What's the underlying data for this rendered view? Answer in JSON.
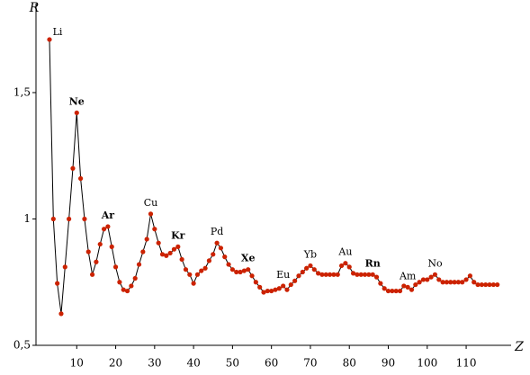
{
  "chart_data": {
    "type": "line",
    "xlabel": "Z",
    "ylabel": "R",
    "x": [
      3,
      4,
      5,
      6,
      7,
      8,
      9,
      10,
      11,
      12,
      13,
      14,
      15,
      16,
      17,
      18,
      19,
      20,
      21,
      22,
      23,
      24,
      25,
      26,
      27,
      28,
      29,
      30,
      31,
      32,
      33,
      34,
      35,
      36,
      37,
      38,
      39,
      40,
      41,
      42,
      43,
      44,
      45,
      46,
      47,
      48,
      49,
      50,
      51,
      52,
      53,
      54,
      55,
      56,
      57,
      58,
      59,
      60,
      61,
      62,
      63,
      64,
      65,
      66,
      67,
      68,
      69,
      70,
      71,
      72,
      73,
      74,
      75,
      76,
      77,
      78,
      79,
      80,
      81,
      82,
      83,
      84,
      85,
      86,
      87,
      88,
      89,
      90,
      91,
      92,
      93,
      94,
      95,
      96,
      97,
      98,
      99,
      100,
      101,
      102,
      103,
      104,
      105,
      106,
      107,
      108,
      109,
      110,
      111,
      112,
      113,
      114,
      115,
      116,
      117,
      118
    ],
    "values": [
      1.71,
      1.0,
      0.745,
      0.625,
      0.81,
      1.0,
      1.2,
      1.42,
      1.16,
      1.0,
      0.87,
      0.78,
      0.83,
      0.9,
      0.96,
      0.97,
      0.89,
      0.81,
      0.75,
      0.72,
      0.715,
      0.735,
      0.765,
      0.82,
      0.87,
      0.92,
      1.02,
      0.96,
      0.905,
      0.86,
      0.855,
      0.865,
      0.88,
      0.89,
      0.84,
      0.8,
      0.78,
      0.745,
      0.78,
      0.795,
      0.805,
      0.835,
      0.86,
      0.905,
      0.885,
      0.85,
      0.82,
      0.8,
      0.79,
      0.79,
      0.795,
      0.8,
      0.775,
      0.75,
      0.73,
      0.71,
      0.715,
      0.715,
      0.72,
      0.725,
      0.735,
      0.72,
      0.74,
      0.755,
      0.775,
      0.79,
      0.805,
      0.815,
      0.8,
      0.785,
      0.78,
      0.78,
      0.78,
      0.78,
      0.78,
      0.815,
      0.825,
      0.81,
      0.785,
      0.78,
      0.78,
      0.78,
      0.78,
      0.78,
      0.77,
      0.745,
      0.725,
      0.715,
      0.715,
      0.715,
      0.715,
      0.735,
      0.73,
      0.72,
      0.74,
      0.75,
      0.76,
      0.76,
      0.77,
      0.78,
      0.76,
      0.75,
      0.75,
      0.75,
      0.75,
      0.75,
      0.75,
      0.76,
      0.775,
      0.75,
      0.74,
      0.74,
      0.74,
      0.74,
      0.74,
      0.74
    ],
    "color": "#cc2200",
    "line_color": "#000000",
    "xlim": [
      0,
      122
    ],
    "xticks": [
      10,
      20,
      30,
      40,
      50,
      60,
      70,
      80,
      90,
      100,
      110
    ],
    "ylim": [
      0.5,
      1.85
    ],
    "yticks": [
      {
        "value": 0.5,
        "label": "0,5"
      },
      1,
      {
        "value": 1.5,
        "label": "1,5"
      }
    ],
    "annotations": [
      {
        "text": "Li",
        "x": 3,
        "color": "#000000"
      },
      {
        "text": "Ne",
        "x": 10,
        "color": "#2b2bc8"
      },
      {
        "text": "Ar",
        "x": 18,
        "color": "#2b2bc8"
      },
      {
        "text": "Cu",
        "x": 29,
        "color": "#000000"
      },
      {
        "text": "Kr",
        "x": 36,
        "color": "#2b2bc8"
      },
      {
        "text": "Pd",
        "x": 46,
        "color": "#000000"
      },
      {
        "text": "Xe",
        "x": 54,
        "color": "#2b2bc8"
      },
      {
        "text": "Eu",
        "x": 63,
        "color": "#000000"
      },
      {
        "text": "Yb",
        "x": 70,
        "color": "#000000"
      },
      {
        "text": "Au",
        "x": 79,
        "color": "#000000"
      },
      {
        "text": "Rn",
        "x": 86,
        "color": "#2b2bc8"
      },
      {
        "text": "Am",
        "x": 95,
        "color": "#000000"
      },
      {
        "text": "No",
        "x": 102,
        "color": "#000000"
      }
    ]
  }
}
